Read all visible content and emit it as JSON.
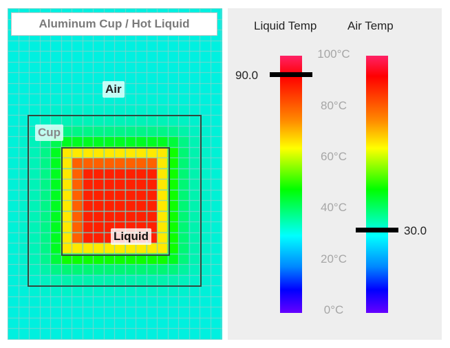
{
  "simulation": {
    "title": "Aluminum Cup / Hot Liquid",
    "labels": {
      "air": "Air",
      "cup": "Cup",
      "liquid": "Liquid"
    },
    "colors": {
      "background": "#00f0e0",
      "grid_line": "#7ad4cc",
      "region_border": "#2f4a3e"
    }
  },
  "thermometers": {
    "liquid": {
      "title": "Liquid Temp",
      "value": "90.0",
      "reading_celsius": 90.0
    },
    "air": {
      "title": "Air Temp",
      "value": "30.0",
      "reading_celsius": 30.0
    },
    "scale": {
      "min_celsius": 0,
      "max_celsius": 100,
      "ticks": [
        "100°C",
        "80°C",
        "60°C",
        "40°C",
        "20°C",
        "0°C"
      ]
    }
  }
}
